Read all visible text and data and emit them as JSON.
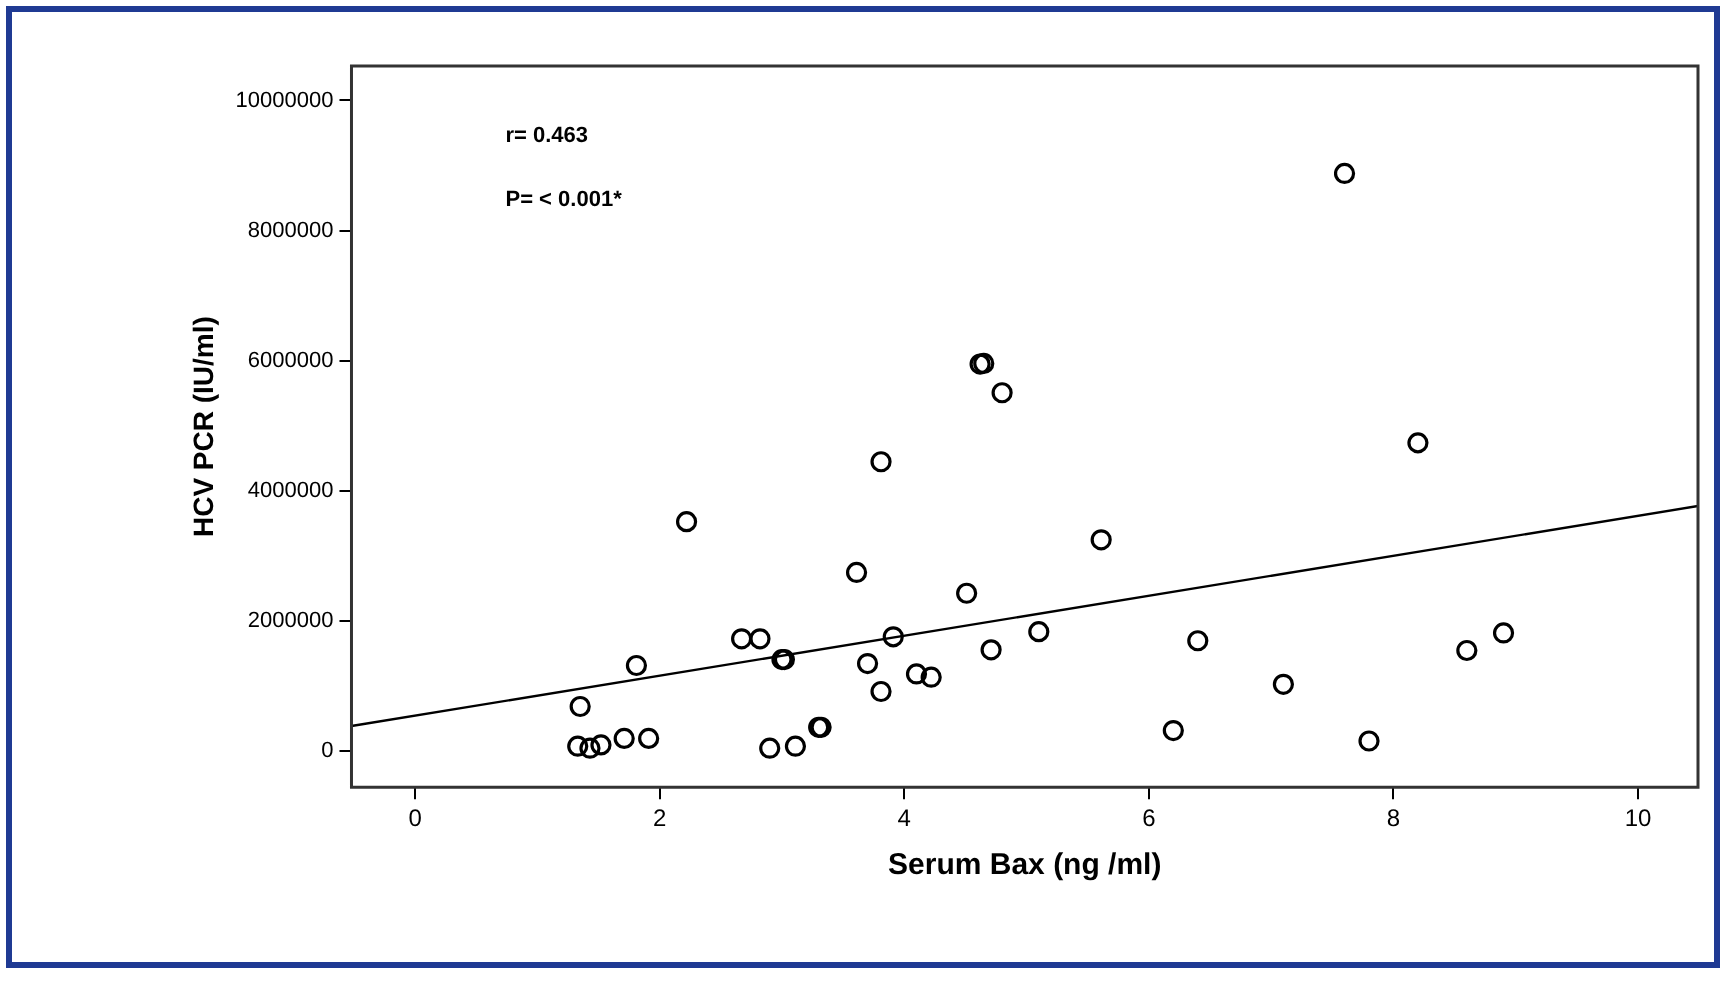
{
  "chart_data": {
    "type": "scatter",
    "xlabel": "Serum Bax (ng /ml)",
    "ylabel": "HCV PCR (IU/ml)",
    "annotations": [
      "r= 0.463",
      "P= < 0.001*"
    ],
    "series": [
      {
        "color": "#000000",
        "marker": "circle",
        "x": [
          4.62,
          4.65,
          4.8,
          3.81,
          2.22,
          3.61,
          4.51,
          2.67,
          2.82,
          3.91,
          3.0,
          3.02,
          1.81,
          3.7,
          4.1,
          4.22,
          4.71,
          3.81,
          1.35,
          3.3,
          3.32,
          1.33,
          1.43,
          1.52,
          1.71,
          1.91,
          2.9,
          3.11,
          7.6,
          8.2,
          5.61,
          5.1,
          6.4,
          7.1,
          6.2,
          7.8,
          8.6,
          8.9
        ],
        "values": [
          5950000,
          5960000,
          5510000,
          4450000,
          3530000,
          2750000,
          2430000,
          1730000,
          1730000,
          1760000,
          1410000,
          1410000,
          1320000,
          1350000,
          1190000,
          1140000,
          1560000,
          920000,
          690000,
          370000,
          370000,
          80000,
          50000,
          100000,
          200000,
          200000,
          50000,
          80000,
          8880000,
          4740000,
          3250000,
          1840000,
          1700000,
          1030000,
          320000,
          160000,
          1550000,
          1820000
        ]
      },
      {
        "type": "line",
        "color": "#000000",
        "marker": "none",
        "x": [
          -0.52,
          10.49
        ],
        "values": [
          390000,
          3770000
        ]
      }
    ],
    "xlim": [
      -0.52,
      10.49
    ],
    "xticks": [
      0,
      2,
      4,
      6,
      8,
      10
    ],
    "ylim": [
      -550000,
      10530000
    ],
    "yticks": [
      0,
      2000000,
      4000000,
      6000000,
      8000000,
      10000000
    ],
    "grid": false,
    "legend": false
  }
}
